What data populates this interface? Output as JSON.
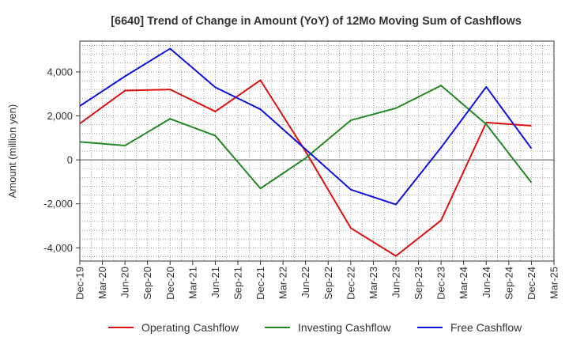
{
  "chart_data": {
    "type": "line",
    "title": "[6640]  Trend of Change in Amount (YoY) of 12Mo Moving Sum of Cashflows",
    "xlabel": "",
    "ylabel": "Amount (million yen)",
    "ylim": [
      -4600,
      5400
    ],
    "yticks": [
      -4000,
      -2000,
      0,
      2000,
      4000
    ],
    "ytick_labels": [
      "-4,000",
      "-2,000",
      "0",
      "2,000",
      "4,000"
    ],
    "categories": [
      "Dec-19",
      "Mar-20",
      "Jun-20",
      "Sep-20",
      "Dec-20",
      "Mar-21",
      "Jun-21",
      "Sep-21",
      "Dec-21",
      "Mar-22",
      "Jun-22",
      "Sep-22",
      "Dec-22",
      "Mar-23",
      "Jun-23",
      "Sep-23",
      "Dec-23",
      "Mar-24",
      "Jun-24",
      "Sep-24",
      "Dec-24",
      "Mar-25"
    ],
    "grid": true,
    "legend_position": "bottom",
    "series": [
      {
        "name": "Operating Cashflow",
        "color": "#dd1111",
        "points": [
          {
            "x": "Dec-19",
            "y": 1650
          },
          {
            "x": "Jun-20",
            "y": 3150
          },
          {
            "x": "Dec-20",
            "y": 3200
          },
          {
            "x": "Jun-21",
            "y": 2200
          },
          {
            "x": "Dec-21",
            "y": 3620
          },
          {
            "x": "Jun-22",
            "y": 380
          },
          {
            "x": "Dec-22",
            "y": -3100
          },
          {
            "x": "Jun-23",
            "y": -4370
          },
          {
            "x": "Dec-23",
            "y": -2750
          },
          {
            "x": "Jun-24",
            "y": 1700
          },
          {
            "x": "Dec-24",
            "y": 1550
          }
        ]
      },
      {
        "name": "Investing Cashflow",
        "color": "#228822",
        "points": [
          {
            "x": "Dec-19",
            "y": 820
          },
          {
            "x": "Jun-20",
            "y": 650
          },
          {
            "x": "Dec-20",
            "y": 1870
          },
          {
            "x": "Jun-21",
            "y": 1100
          },
          {
            "x": "Dec-21",
            "y": -1300
          },
          {
            "x": "Jun-22",
            "y": 80
          },
          {
            "x": "Dec-22",
            "y": 1800
          },
          {
            "x": "Jun-23",
            "y": 2350
          },
          {
            "x": "Dec-23",
            "y": 3380
          },
          {
            "x": "Jun-24",
            "y": 1620
          },
          {
            "x": "Dec-24",
            "y": -1030
          }
        ]
      },
      {
        "name": "Free Cashflow",
        "color": "#1111dd",
        "points": [
          {
            "x": "Dec-19",
            "y": 2450
          },
          {
            "x": "Jun-20",
            "y": 3800
          },
          {
            "x": "Dec-20",
            "y": 5060
          },
          {
            "x": "Jun-21",
            "y": 3300
          },
          {
            "x": "Dec-21",
            "y": 2300
          },
          {
            "x": "Jun-22",
            "y": 480
          },
          {
            "x": "Dec-22",
            "y": -1350
          },
          {
            "x": "Jun-23",
            "y": -2030
          },
          {
            "x": "Dec-23",
            "y": 560
          },
          {
            "x": "Jun-24",
            "y": 3320
          },
          {
            "x": "Dec-24",
            "y": 520
          }
        ]
      }
    ]
  }
}
